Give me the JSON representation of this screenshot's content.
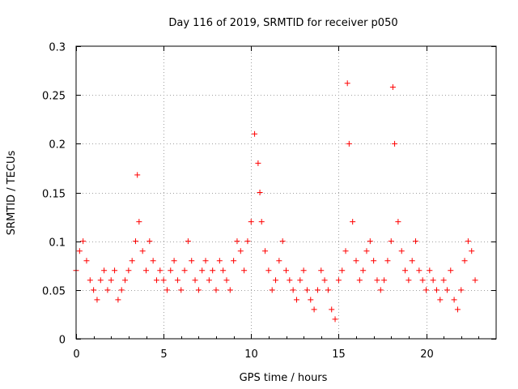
{
  "chart_data": {
    "type": "scatter",
    "title": "Day 116 of 2019, SRMTID for receiver p050",
    "xlabel": "GPS time / hours",
    "ylabel": "SRMTID / TECUs",
    "xlim": [
      0,
      24
    ],
    "ylim": [
      0,
      0.3
    ],
    "xticks": [
      0,
      5,
      10,
      15,
      20
    ],
    "yticks": [
      0,
      0.05,
      0.1,
      0.15,
      0.2,
      0.25,
      0.3
    ],
    "grid": true,
    "marker": "+",
    "series": [
      {
        "name": "SRMTID",
        "color": "#ff0000",
        "x": [
          0.0,
          0.2,
          0.4,
          0.6,
          0.8,
          1.0,
          1.2,
          1.4,
          1.6,
          1.8,
          2.0,
          2.2,
          2.4,
          2.6,
          2.8,
          3.0,
          3.2,
          3.4,
          3.5,
          3.6,
          3.8,
          4.0,
          4.2,
          4.4,
          4.6,
          4.8,
          5.0,
          5.2,
          5.4,
          5.6,
          5.8,
          6.0,
          6.2,
          6.4,
          6.6,
          6.8,
          7.0,
          7.2,
          7.4,
          7.6,
          7.8,
          8.0,
          8.2,
          8.4,
          8.6,
          8.8,
          9.0,
          9.2,
          9.4,
          9.6,
          9.8,
          10.0,
          10.2,
          10.4,
          10.5,
          10.6,
          10.8,
          11.0,
          11.2,
          11.4,
          11.6,
          11.8,
          12.0,
          12.2,
          12.4,
          12.6,
          12.8,
          13.0,
          13.2,
          13.4,
          13.6,
          13.8,
          14.0,
          14.2,
          14.4,
          14.6,
          14.8,
          15.0,
          15.2,
          15.4,
          15.5,
          15.6,
          15.8,
          16.0,
          16.2,
          16.4,
          16.6,
          16.8,
          17.0,
          17.2,
          17.4,
          17.6,
          17.8,
          18.0,
          18.1,
          18.2,
          18.4,
          18.6,
          18.8,
          19.0,
          19.2,
          19.4,
          19.6,
          19.8,
          20.0,
          20.2,
          20.4,
          20.6,
          20.8,
          21.0,
          21.2,
          21.4,
          21.6,
          21.8,
          22.0,
          22.2,
          22.4,
          22.6,
          22.8
        ],
        "y": [
          0.07,
          0.09,
          0.1,
          0.08,
          0.06,
          0.05,
          0.04,
          0.06,
          0.07,
          0.05,
          0.06,
          0.07,
          0.04,
          0.05,
          0.06,
          0.07,
          0.08,
          0.1,
          0.168,
          0.12,
          0.09,
          0.07,
          0.1,
          0.08,
          0.06,
          0.07,
          0.06,
          0.05,
          0.07,
          0.08,
          0.06,
          0.05,
          0.07,
          0.1,
          0.08,
          0.06,
          0.05,
          0.07,
          0.08,
          0.06,
          0.07,
          0.05,
          0.08,
          0.07,
          0.06,
          0.05,
          0.08,
          0.1,
          0.09,
          0.07,
          0.1,
          0.12,
          0.21,
          0.18,
          0.15,
          0.12,
          0.09,
          0.07,
          0.05,
          0.06,
          0.08,
          0.1,
          0.07,
          0.06,
          0.05,
          0.04,
          0.06,
          0.07,
          0.05,
          0.04,
          0.03,
          0.05,
          0.07,
          0.06,
          0.05,
          0.03,
          0.02,
          0.06,
          0.07,
          0.09,
          0.262,
          0.2,
          0.12,
          0.08,
          0.06,
          0.07,
          0.09,
          0.1,
          0.08,
          0.06,
          0.05,
          0.06,
          0.08,
          0.1,
          0.258,
          0.2,
          0.12,
          0.09,
          0.07,
          0.06,
          0.08,
          0.1,
          0.07,
          0.06,
          0.05,
          0.07,
          0.06,
          0.05,
          0.04,
          0.06,
          0.05,
          0.07,
          0.04,
          0.03,
          0.05,
          0.08,
          0.1,
          0.09,
          0.06
        ]
      }
    ]
  }
}
